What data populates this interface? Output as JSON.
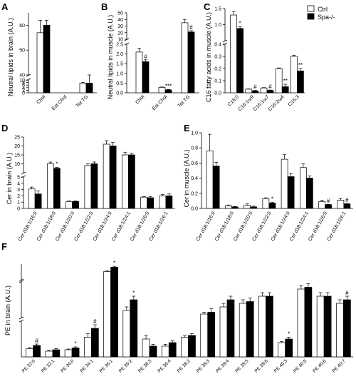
{
  "legend": {
    "ctrl": "Ctrl",
    "spa": "Spa-/-"
  },
  "colors": {
    "ctrl": "#ffffff",
    "spa": "#000000",
    "axis": "#000000"
  },
  "chart_data": [
    {
      "panel": "A",
      "type": "bar",
      "ylabel": "Neutral lipids in brain (A.U.)",
      "categories": [
        "Chol",
        "Est Chol",
        "Tot TG"
      ],
      "series": [
        {
          "name": "Ctrl",
          "values": [
            57,
            0,
            7.5
          ]
        },
        {
          "name": "Spa-/-",
          "values": [
            60,
            0,
            7.5
          ]
        }
      ],
      "errors": [
        [
          5,
          0,
          0.5
        ],
        [
          2,
          0,
          4
        ]
      ],
      "marks": [
        [
          "",
          "",
          ""
        ],
        [
          "",
          "",
          ""
        ]
      ],
      "yticks": [
        "0",
        "2",
        "4",
        "6",
        "8",
        "10",
        "40",
        "50",
        "60"
      ],
      "axis_break": [
        10,
        40
      ]
    },
    {
      "panel": "B",
      "type": "bar",
      "ylabel": "Neutral lipids in muscle (A.U.)",
      "categories": [
        "Chol",
        "Est Chol",
        "Tot TG"
      ],
      "series": [
        {
          "name": "Ctrl",
          "values": [
            2.1,
            0.28,
            35
          ]
        },
        {
          "name": "Spa-/-",
          "values": [
            1.6,
            0.15,
            21
          ]
        }
      ],
      "errors": [
        [
          0.2,
          0.02,
          5
        ],
        [
          0.1,
          0.02,
          2
        ]
      ],
      "marks": [
        [
          "",
          "",
          ""
        ],
        [
          "#",
          "***",
          "#"
        ]
      ],
      "yticks": [
        "0.0",
        "0.5",
        "1.0",
        "1.5",
        "2.0",
        "2.5",
        "10",
        "20",
        "30",
        "40",
        "50"
      ],
      "axis_break": [
        2.5,
        10
      ]
    },
    {
      "panel": "C",
      "type": "bar",
      "ylabel": "C16 fatty acids in muscle (A.U.)",
      "categories": [
        "C16:0",
        "C16:1ω9",
        "C16:1ω7",
        "C16:2ω4",
        "C16:3"
      ],
      "series": [
        {
          "name": "Ctrl",
          "values": [
            1.3,
            0.03,
            0.04,
            0.2,
            0.3
          ]
        },
        {
          "name": "Spa-/-",
          "values": [
            0.88,
            0.016,
            0.02,
            0.05,
            0.18
          ]
        }
      ],
      "errors": [
        [
          0.1,
          0.002,
          0.003,
          0.005,
          0.01
        ],
        [
          0.05,
          0.004,
          0.003,
          0.02,
          0.02
        ]
      ],
      "marks": [
        [
          "",
          "",
          "",
          "",
          ""
        ],
        [
          "*",
          "#",
          "#",
          "**",
          "**"
        ]
      ],
      "yticks": [
        "0.0",
        "0.1",
        "0.2",
        "0.3",
        "0.4",
        "1.0",
        "1.5"
      ],
      "axis_break": [
        0.4,
        0.5
      ]
    },
    {
      "panel": "D",
      "type": "bar",
      "ylabel": "Cer in brain (A.U.)",
      "categories": [
        "Cer d18:1/16:0",
        "Cer d18:1/18:0",
        "Cer d18:1/20:0",
        "Cer d18:1/22:0",
        "Cer d18:1/24:0",
        "Cer d18:1/24:1",
        "Cer d18:1/26:0",
        "Cer d18:1/26:1"
      ],
      "series": [
        {
          "name": "Ctrl",
          "values": [
            3.1,
            10,
            1.1,
            9,
            21,
            15,
            1.8,
            2.0
          ]
        },
        {
          "name": "Spa-/-",
          "values": [
            2.3,
            7.5,
            1.1,
            10,
            20,
            15,
            1.7,
            2.0
          ]
        }
      ],
      "errors": [
        [
          0.3,
          1,
          0.1,
          1,
          2,
          1.5,
          0.1,
          0.2
        ],
        [
          0.5,
          0.5,
          0.1,
          1,
          2,
          1,
          0.2,
          0.3
        ]
      ],
      "marks": [
        [
          "",
          "",
          "",
          "",
          "",
          "",
          "",
          ""
        ],
        [
          "",
          "*",
          "",
          "",
          "",
          "",
          "",
          ""
        ]
      ],
      "yticks": [
        "0",
        "1",
        "2",
        "3",
        "4",
        "5",
        "10",
        "15",
        "20",
        "25"
      ],
      "axis_break": [
        5,
        5
      ]
    },
    {
      "panel": "E",
      "type": "bar",
      "ylabel": "Cer in muscle (A.U.)",
      "categories": [
        "Cer d18:1/16:0",
        "Cer d18:1/18:0",
        "Cer d18:1/20:0",
        "Cer d18:1/22:0",
        "Cer d18:1/24:0",
        "Cer d18:1/24:1",
        "Cer d18:1/26:0",
        "Cer d18:1/26:1"
      ],
      "series": [
        {
          "name": "Ctrl",
          "values": [
            0.76,
            0.035,
            0.04,
            0.13,
            0.65,
            0.54,
            0.09,
            0.11
          ]
        },
        {
          "name": "Spa-/-",
          "values": [
            0.56,
            0.02,
            0.02,
            0.07,
            0.42,
            0.4,
            0.05,
            0.06
          ]
        }
      ],
      "errors": [
        [
          0.22,
          0.01,
          0.02,
          0.01,
          0.06,
          0.05,
          0.02,
          0.02
        ],
        [
          0.05,
          0.005,
          0.01,
          0.01,
          0.04,
          0.03,
          0.005,
          0.005
        ]
      ],
      "marks": [
        [
          "",
          "",
          "",
          "",
          "",
          "",
          "",
          ""
        ],
        [
          "",
          "",
          "",
          "*",
          "",
          "",
          "#",
          "#"
        ]
      ],
      "yticks": [
        "0.0",
        "0.2",
        "0.4",
        "0.6",
        "0.8",
        "1.0"
      ],
      "ylim": [
        0,
        1.0
      ]
    },
    {
      "panel": "F",
      "type": "bar",
      "ylabel": "PE in brain (A.U.)",
      "categories": [
        "PE 32:0",
        "PE 32:1",
        "PE 34:0",
        "PE 34:1",
        "PE 36:1",
        "PE 36:2",
        "PE 36:3",
        "PE 36:4",
        "PE 38:2",
        "PE 38:3",
        "PE 38:4",
        "PE 38:5",
        "PE 38:6",
        "PE 40:3",
        "PE 40:5",
        "PE 40:6",
        "PE 40:7"
      ],
      "series": [
        {
          "name": "Ctrl",
          "values": [
            2.3,
            1.6,
            2.0,
            5.5,
            46,
            12,
            5.0,
            3.0,
            5.5,
            11,
            13,
            14,
            16,
            4.0,
            18,
            16,
            14
          ]
        },
        {
          "name": "Spa-/-",
          "values": [
            3.2,
            2.0,
            2.5,
            8.0,
            60,
            15,
            3.0,
            4.0,
            6.0,
            11.5,
            15,
            14.5,
            16,
            5.0,
            18.5,
            16,
            15
          ]
        }
      ],
      "errors": [
        [
          0.3,
          0.2,
          0.2,
          1.0,
          2,
          1,
          1.0,
          0.5,
          0.5,
          0.5,
          1,
          1,
          1,
          0.3,
          1,
          1,
          1
        ],
        [
          0.4,
          0.3,
          0.3,
          1.0,
          3,
          1,
          0.5,
          0.5,
          0.5,
          1,
          1,
          1,
          1,
          0.5,
          1,
          1,
          1
        ]
      ],
      "marks": [
        [
          "",
          "",
          "",
          "",
          "",
          "",
          "",
          "",
          "",
          "",
          "",
          "",
          "",
          "",
          "",
          "",
          ""
        ],
        [
          "#",
          "",
          "*",
          "#",
          "*",
          "*",
          "",
          "",
          "",
          "",
          "",
          "",
          "",
          "*",
          "",
          "",
          "#"
        ]
      ]
    }
  ]
}
